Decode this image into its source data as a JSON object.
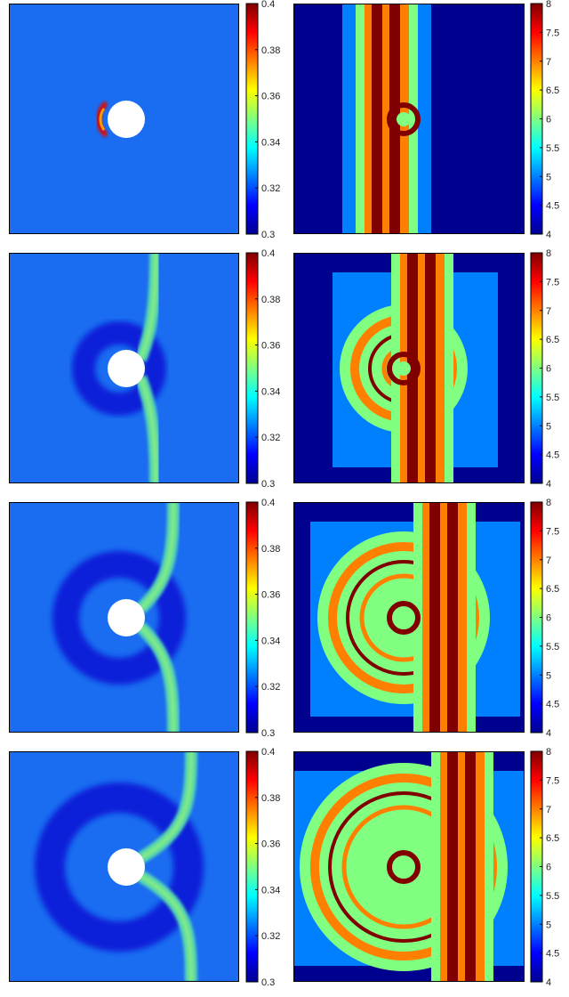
{
  "colormap": [
    "#00008f",
    "#0000ff",
    "#0080ff",
    "#00ffff",
    "#80ff80",
    "#ffff00",
    "#ff8000",
    "#ff0000",
    "#800000"
  ],
  "rows": [
    {
      "stage": 1,
      "field_colorbar": {
        "min": 0.3,
        "max": 0.4,
        "ticks": [
          "0.4",
          "0.38",
          "0.36",
          "0.34",
          "0.32",
          "0.3"
        ]
      },
      "mesh_colorbar": {
        "min": 4,
        "max": 8,
        "ticks": [
          "8",
          "7.5",
          "7",
          "6.5",
          "6",
          "5.5",
          "5",
          "4.5",
          "4"
        ]
      }
    },
    {
      "stage": 2,
      "field_colorbar": {
        "min": 0.3,
        "max": 0.4,
        "ticks": [
          "0.4",
          "0.38",
          "0.36",
          "0.34",
          "0.32",
          "0.3"
        ]
      },
      "mesh_colorbar": {
        "min": 4,
        "max": 8,
        "ticks": [
          "8",
          "7.5",
          "7",
          "6.5",
          "6",
          "5.5",
          "5",
          "4.5",
          "4"
        ]
      }
    },
    {
      "stage": 3,
      "field_colorbar": {
        "min": 0.3,
        "max": 0.4,
        "ticks": [
          "0.4",
          "0.38",
          "0.36",
          "0.34",
          "0.32",
          "0.3"
        ]
      },
      "mesh_colorbar": {
        "min": 4,
        "max": 8,
        "ticks": [
          "8",
          "7.5",
          "7",
          "6.5",
          "6",
          "5.5",
          "5",
          "4.5",
          "4"
        ]
      }
    },
    {
      "stage": 4,
      "field_colorbar": {
        "min": 0.3,
        "max": 0.4,
        "ticks": [
          "0.4",
          "0.38",
          "0.36",
          "0.34",
          "0.32",
          "0.3"
        ]
      },
      "mesh_colorbar": {
        "min": 4,
        "max": 8,
        "ticks": [
          "8",
          "7.5",
          "7",
          "6.5",
          "6",
          "5.5",
          "5",
          "4.5",
          "4"
        ]
      }
    }
  ]
}
